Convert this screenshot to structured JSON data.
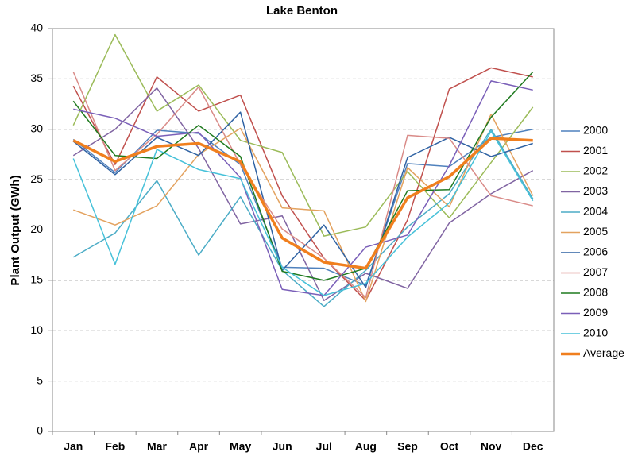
{
  "chart_data": {
    "type": "line",
    "title": "Lake Benton",
    "y_label": "Plant Output (GWh)",
    "categories": [
      "Jan",
      "Feb",
      "Mar",
      "Apr",
      "May",
      "Jun",
      "Jul",
      "Aug",
      "Sep",
      "Oct",
      "Nov",
      "Dec"
    ],
    "ylim": [
      0,
      40
    ],
    "yticks": [
      0,
      5,
      10,
      15,
      20,
      25,
      30,
      35,
      40
    ],
    "grid": true,
    "legend": "right",
    "series": [
      {
        "name": "2000",
        "color": "#4f81bd",
        "values": [
          29.0,
          25.7,
          29.9,
          29.6,
          26.5,
          16.3,
          16.2,
          14.5,
          26.6,
          26.3,
          29.2,
          30.0
        ]
      },
      {
        "name": "2001",
        "color": "#c0504d",
        "values": [
          34.3,
          26.5,
          35.2,
          31.8,
          33.4,
          23.4,
          17.2,
          13.0,
          21.0,
          34.0,
          36.1,
          35.2
        ]
      },
      {
        "name": "2002",
        "color": "#9bbb59",
        "values": [
          30.4,
          39.4,
          31.8,
          34.4,
          28.9,
          27.7,
          19.4,
          20.3,
          25.8,
          21.2,
          26.7,
          32.2
        ]
      },
      {
        "name": "2003",
        "color": "#8064a2",
        "values": [
          27.4,
          30.0,
          34.1,
          28.1,
          20.6,
          21.4,
          13.0,
          15.7,
          14.2,
          20.7,
          23.6,
          25.9
        ]
      },
      {
        "name": "2004",
        "color": "#4bacc6",
        "values": [
          17.3,
          19.7,
          24.9,
          17.5,
          23.3,
          16.0,
          12.4,
          16.0,
          20.3,
          23.6,
          30.0,
          23.1
        ]
      },
      {
        "name": "2005",
        "color": "#e3a25f",
        "values": [
          22.0,
          20.5,
          22.4,
          27.5,
          30.1,
          22.2,
          21.9,
          12.9,
          26.2,
          22.3,
          31.5,
          23.4
        ]
      },
      {
        "name": "2006",
        "color": "#2f62a3",
        "values": [
          28.8,
          25.5,
          29.2,
          27.4,
          31.7,
          16.0,
          20.5,
          14.3,
          27.2,
          29.2,
          27.3,
          28.6
        ]
      },
      {
        "name": "2007",
        "color": "#d98b88",
        "values": [
          35.7,
          25.9,
          29.5,
          34.2,
          26.5,
          20.1,
          17.2,
          13.3,
          29.4,
          29.1,
          23.4,
          22.4
        ]
      },
      {
        "name": "2008",
        "color": "#1f7a1f",
        "values": [
          32.8,
          27.4,
          27.1,
          30.4,
          27.3,
          15.9,
          15.0,
          16.2,
          23.9,
          24.0,
          31.2,
          35.7
        ]
      },
      {
        "name": "2009",
        "color": "#7a5fb8",
        "values": [
          32.0,
          31.1,
          29.3,
          29.7,
          25.2,
          14.1,
          13.5,
          18.3,
          19.5,
          26.4,
          34.8,
          33.9
        ]
      },
      {
        "name": "2010",
        "color": "#46c1d9",
        "values": [
          27.1,
          16.6,
          28.0,
          26.0,
          25.1,
          16.3,
          13.5,
          14.7,
          19.3,
          22.7,
          29.8,
          22.9
        ]
      },
      {
        "name": "Average",
        "color": "#f07f1e",
        "values": [
          28.9,
          26.8,
          28.3,
          28.6,
          26.8,
          19.2,
          16.8,
          16.2,
          23.2,
          25.3,
          29.1,
          28.9
        ]
      }
    ]
  }
}
